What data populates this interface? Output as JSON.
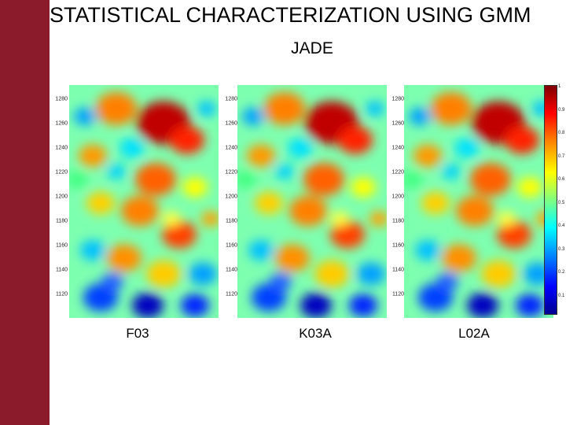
{
  "slide": {
    "title": "STATISTICAL CHARACTERIZATION USING GMM",
    "subtitle": "JADE",
    "colors": {
      "accent_bar": "#8b1a2b"
    }
  },
  "panels": [
    {
      "caption": "F03"
    },
    {
      "caption": "K03A"
    },
    {
      "caption": "L02A"
    }
  ],
  "y_ticks": [
    "1280",
    "1260",
    "1240",
    "1220",
    "1200",
    "1180",
    "1160",
    "1140",
    "1120"
  ],
  "colorbar_ticks": [
    "1",
    "0.9",
    "0.8",
    "0.7",
    "0.6",
    "0.5",
    "0.4",
    "0.3",
    "0.2",
    "0.1"
  ]
}
